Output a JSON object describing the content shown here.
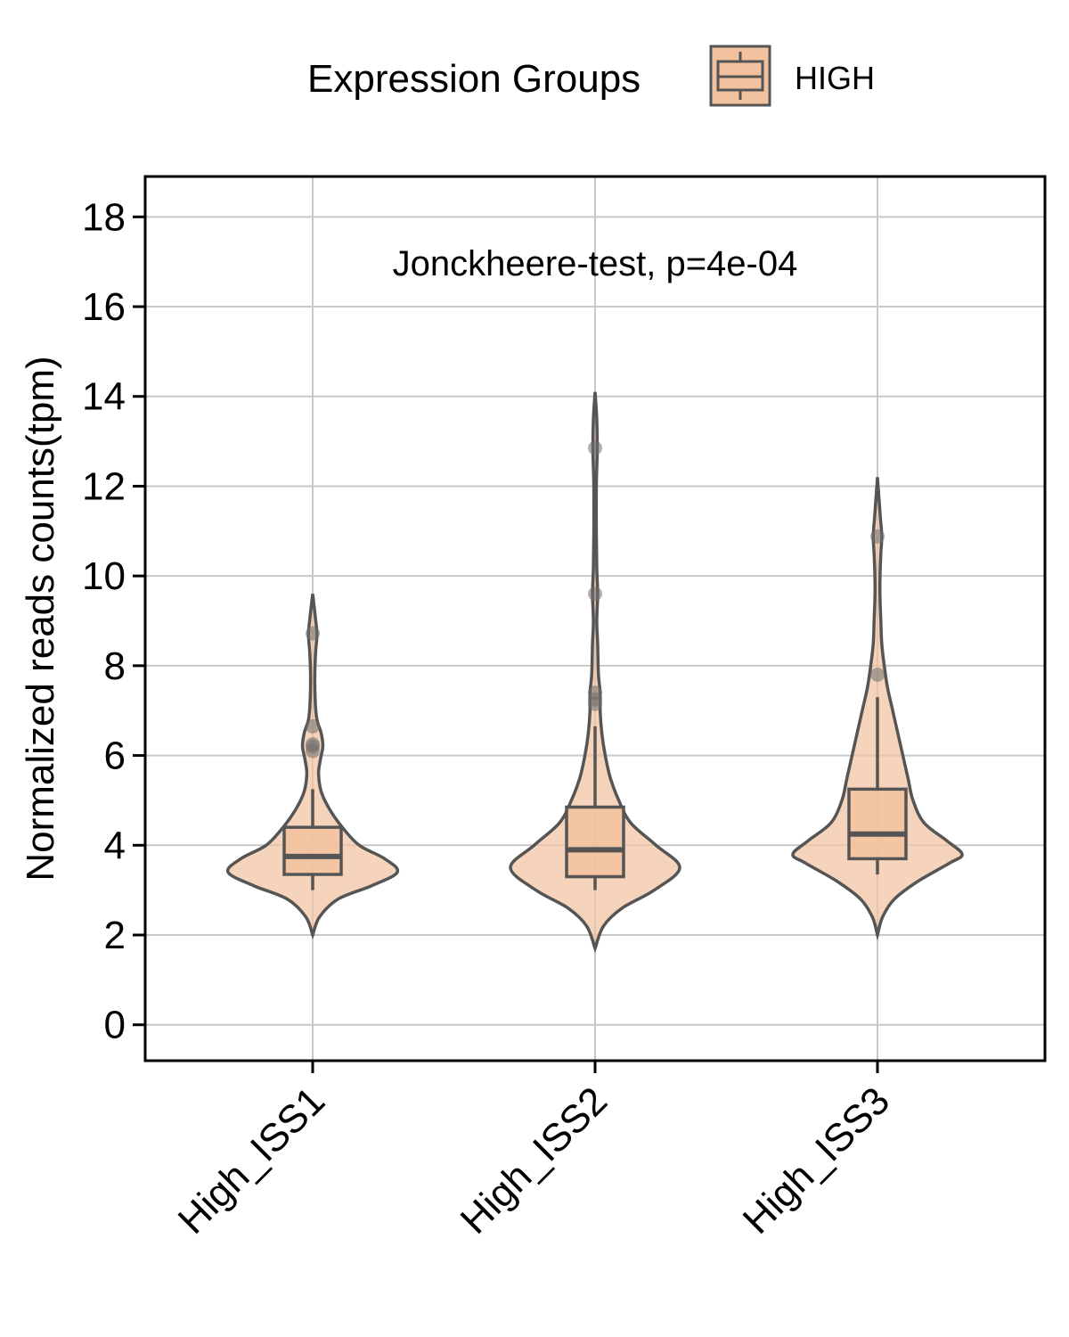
{
  "chart_data": {
    "type": "violin",
    "ylabel": "Normalized reads counts(tpm)",
    "xlabel": "",
    "annotation": "Jonckheere-test, p=4e-04",
    "legend": {
      "title": "Expression Groups",
      "entries": [
        "HIGH"
      ],
      "position": "top"
    },
    "ylim": [
      -0.8,
      18.9
    ],
    "yticks": [
      0,
      2,
      4,
      6,
      8,
      10,
      12,
      14,
      16,
      18
    ],
    "grid": true,
    "colors": {
      "fill": "#f2c29e",
      "outline": "#555555",
      "grid": "#c8c8c8",
      "point": "#6e6e6e"
    },
    "categories": [
      "High_ISS1",
      "High_ISS2",
      "High_ISS3"
    ],
    "series": [
      {
        "name": "HIGH",
        "groups": [
          {
            "category": "High_ISS1",
            "box": {
              "whisker_low": 3.0,
              "q1": 3.35,
              "median": 3.75,
              "q3": 4.4,
              "whisker_high": 5.25
            },
            "outliers": [
              6.1,
              6.2,
              6.25,
              6.65,
              8.72
            ],
            "violin_range": [
              2.0,
              9.6
            ],
            "density": [
              [
                2.0,
                0.0
              ],
              [
                2.4,
                0.08
              ],
              [
                2.8,
                0.3
              ],
              [
                3.1,
                0.7
              ],
              [
                3.4,
                1.0
              ],
              [
                3.7,
                0.85
              ],
              [
                4.0,
                0.55
              ],
              [
                4.4,
                0.35
              ],
              [
                4.8,
                0.2
              ],
              [
                5.2,
                0.1
              ],
              [
                5.6,
                0.07
              ],
              [
                5.9,
                0.09
              ],
              [
                6.2,
                0.12
              ],
              [
                6.5,
                0.1
              ],
              [
                6.8,
                0.05
              ],
              [
                7.2,
                0.03
              ],
              [
                7.8,
                0.025
              ],
              [
                8.3,
                0.035
              ],
              [
                8.7,
                0.05
              ],
              [
                9.1,
                0.03
              ],
              [
                9.6,
                0.0
              ]
            ]
          },
          {
            "category": "High_ISS2",
            "box": {
              "whisker_low": 3.0,
              "q1": 3.3,
              "median": 3.9,
              "q3": 4.85,
              "whisker_high": 6.65
            },
            "outliers": [
              7.15,
              7.25,
              7.4,
              9.6,
              12.85
            ],
            "violin_range": [
              1.7,
              14.1
            ],
            "density": [
              [
                1.7,
                0.0
              ],
              [
                2.2,
                0.1
              ],
              [
                2.6,
                0.32
              ],
              [
                3.0,
                0.7
              ],
              [
                3.5,
                1.0
              ],
              [
                4.0,
                0.72
              ],
              [
                4.5,
                0.42
              ],
              [
                5.0,
                0.28
              ],
              [
                5.5,
                0.18
              ],
              [
                6.0,
                0.12
              ],
              [
                6.5,
                0.08
              ],
              [
                7.0,
                0.06
              ],
              [
                7.4,
                0.06
              ],
              [
                7.8,
                0.04
              ],
              [
                8.5,
                0.03
              ],
              [
                9.0,
                0.02
              ],
              [
                9.6,
                0.03
              ],
              [
                10.2,
                0.02
              ],
              [
                11.0,
                0.015
              ],
              [
                12.0,
                0.015
              ],
              [
                12.8,
                0.025
              ],
              [
                13.5,
                0.02
              ],
              [
                14.1,
                0.0
              ]
            ]
          },
          {
            "category": "High_ISS3",
            "box": {
              "whisker_low": 3.35,
              "q1": 3.7,
              "median": 4.25,
              "q3": 5.25,
              "whisker_high": 7.3
            },
            "outliers": [
              7.8,
              10.88
            ],
            "violin_range": [
              2.0,
              12.2
            ],
            "density": [
              [
                2.0,
                0.0
              ],
              [
                2.4,
                0.06
              ],
              [
                2.8,
                0.2
              ],
              [
                3.2,
                0.48
              ],
              [
                3.6,
                0.85
              ],
              [
                3.8,
                1.0
              ],
              [
                4.1,
                0.82
              ],
              [
                4.5,
                0.55
              ],
              [
                5.0,
                0.42
              ],
              [
                5.5,
                0.36
              ],
              [
                6.0,
                0.3
              ],
              [
                6.5,
                0.24
              ],
              [
                7.0,
                0.18
              ],
              [
                7.5,
                0.12
              ],
              [
                8.0,
                0.08
              ],
              [
                8.5,
                0.05
              ],
              [
                9.0,
                0.04
              ],
              [
                9.5,
                0.03
              ],
              [
                10.0,
                0.03
              ],
              [
                10.5,
                0.04
              ],
              [
                10.9,
                0.05
              ],
              [
                11.4,
                0.03
              ],
              [
                12.2,
                0.0
              ]
            ]
          }
        ]
      }
    ]
  }
}
